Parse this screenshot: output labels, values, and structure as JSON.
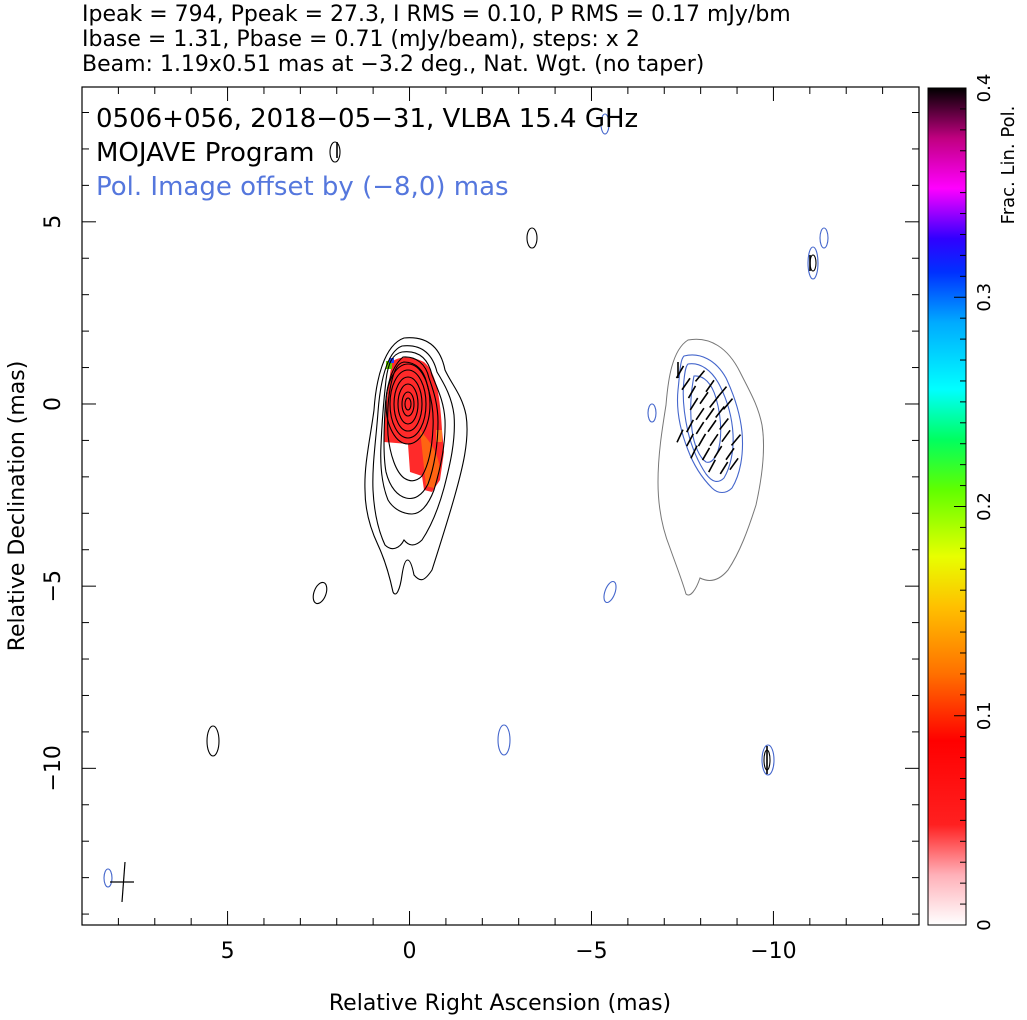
{
  "header": {
    "line1": "Ipeak = 794, Ppeak = 27.3, I RMS = 0.10, P RMS = 0.17 mJy/bm",
    "line2": "Ibase = 1.31, Pbase = 0.71 (mJy/beam), steps: x 2",
    "line3": "Beam: 1.19x0.51 mas at −3.2 deg., Nat. Wgt. (no taper)"
  },
  "annotations": {
    "source": "0506+056, 2018−05−31, VLBA 15.4 GHz",
    "program": "MOJAVE Program",
    "offset": "Pol. Image offset by (−8,0) mas"
  },
  "colors": {
    "stokes_i_contour": "#000000",
    "pol_contour": "#4466cc",
    "offset_text": "#5577dd",
    "total_intensity_outline": "#777777"
  },
  "chart_data": {
    "type": "heatmap",
    "xlabel": "Relative Right Ascension (mas)",
    "ylabel": "Relative Declination (mas)",
    "xlim": [
      9,
      -14
    ],
    "ylim": [
      -14.3,
      8.7
    ],
    "x_ticks": [
      5,
      0,
      -5,
      -10
    ],
    "x_tick_labels": [
      "5",
      "0",
      "−5",
      "−10"
    ],
    "y_ticks": [
      5,
      0,
      -5,
      -10
    ],
    "y_tick_labels": [
      "5",
      "0",
      "−5",
      "−10"
    ],
    "colorbar": {
      "label": "Frac. Lin. Pol.",
      "range": [
        0,
        0.4
      ],
      "ticks": [
        0,
        0.1,
        0.2,
        0.3,
        0.4
      ],
      "tick_labels": [
        "0",
        "0.1",
        "0.2",
        "0.3",
        "0.4"
      ]
    },
    "core_position": [
      0,
      0
    ],
    "stokes_i_contour_levels_mJy": [
      1.31,
      2.62,
      5.24,
      10.48,
      20.96,
      41.92,
      83.84,
      167.68,
      335.36
    ],
    "polarization_offset_mas": [
      -8,
      0
    ],
    "beam": {
      "major_mas": 1.19,
      "minor_mas": 0.51,
      "pa_deg": -3.2
    }
  }
}
